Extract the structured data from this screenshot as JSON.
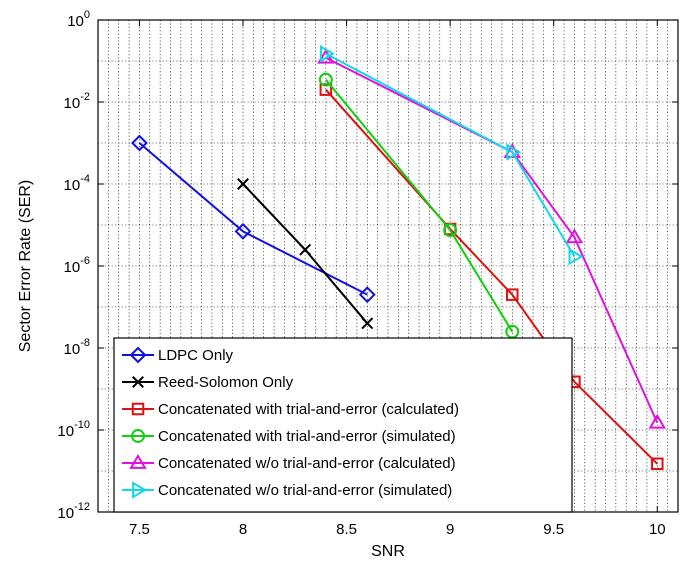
{
  "chart_data": {
    "type": "line",
    "xlabel": "SNR",
    "ylabel": "Sector Error Rate (SER)",
    "xlim": [
      7.3,
      10.1
    ],
    "ylim_exponent": [
      -12,
      0
    ],
    "yscale": "log",
    "grid": true,
    "legend_position": "bottom-left",
    "x_ticks": [
      {
        "value": 7.5,
        "label": "7.5"
      },
      {
        "value": 8,
        "label": "8"
      },
      {
        "value": 8.5,
        "label": "8.5"
      },
      {
        "value": 9,
        "label": "9"
      },
      {
        "value": 9.5,
        "label": "9.5"
      },
      {
        "value": 10,
        "label": "10"
      }
    ],
    "y_ticks": [
      {
        "exp": 0,
        "base": "10",
        "sup": "0"
      },
      {
        "exp": -2,
        "base": "10",
        "sup": "-2"
      },
      {
        "exp": -4,
        "base": "10",
        "sup": "-4"
      },
      {
        "exp": -6,
        "base": "10",
        "sup": "-6"
      },
      {
        "exp": -8,
        "base": "10",
        "sup": "-8"
      },
      {
        "exp": -10,
        "base": "10",
        "sup": "-10"
      },
      {
        "exp": -12,
        "base": "10",
        "sup": "-12"
      }
    ],
    "series": [
      {
        "name": "LDPC Only",
        "color": "#1010e0",
        "marker": "diamond",
        "x": [
          7.5,
          8.0,
          8.6
        ],
        "y": [
          0.001,
          7e-06,
          2e-07
        ]
      },
      {
        "name": "Reed-Solomon Only",
        "color": "#000000",
        "marker": "x",
        "x": [
          8.0,
          8.3,
          8.6
        ],
        "y": [
          0.0001,
          2.5e-06,
          4e-08
        ]
      },
      {
        "name": "Concatenated with trial-and-error (calculated)",
        "color": "#e01010",
        "marker": "square",
        "x": [
          8.4,
          9.0,
          9.3,
          9.6,
          10.0
        ],
        "y": [
          0.02,
          8e-06,
          2e-07,
          1.5e-09,
          1.5e-11
        ]
      },
      {
        "name": "Concatenated with trial-and-error (simulated)",
        "color": "#10d010",
        "marker": "circle",
        "x": [
          8.4,
          9.0,
          9.3
        ],
        "y": [
          0.035,
          7.5e-06,
          2.5e-08
        ]
      },
      {
        "name": "Concatenated w/o trial-and-error (calculated)",
        "color": "#e010e0",
        "marker": "triangle-up",
        "x": [
          8.4,
          9.3,
          9.6,
          10.0
        ],
        "y": [
          0.12,
          0.0006,
          5e-06,
          1.5e-10
        ]
      },
      {
        "name": "Concatenated w/o trial-and-error (simulated)",
        "color": "#10d8e8",
        "marker": "triangle-right",
        "x": [
          8.4,
          9.3,
          9.6
        ],
        "y": [
          0.15,
          0.0006,
          1.7e-06
        ]
      }
    ]
  }
}
